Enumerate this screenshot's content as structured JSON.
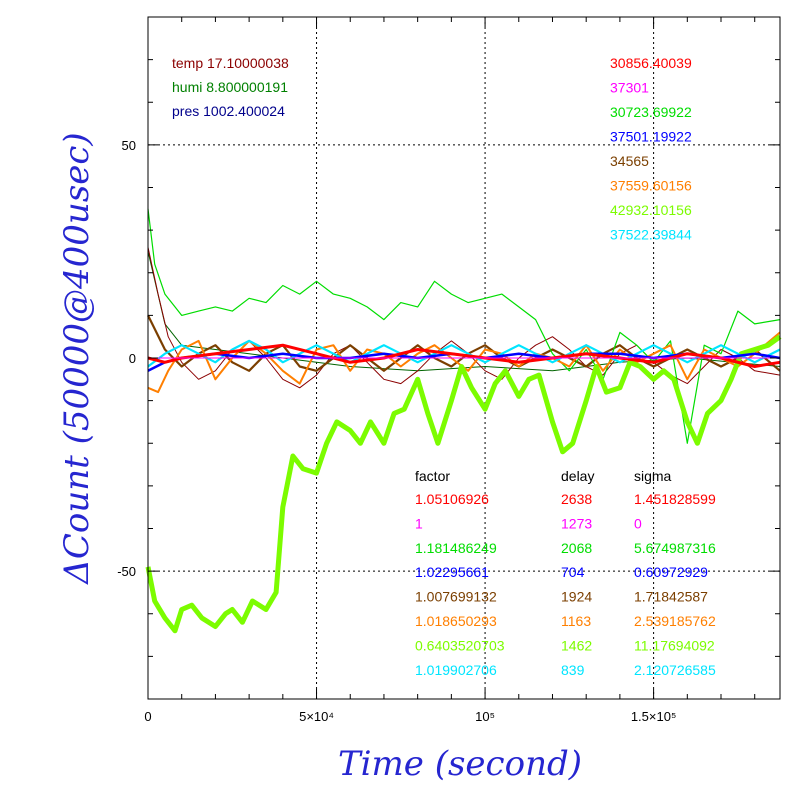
{
  "chart_data": {
    "type": "line",
    "title": "",
    "xlabel": "Time (second)",
    "ylabel": "ΔCount (50000@400usec)",
    "xlim": [
      0,
      187500
    ],
    "ylim": [
      -80,
      80
    ],
    "grid": true,
    "x_ticks": [
      {
        "value": 0,
        "label": "0"
      },
      {
        "value": 50000,
        "label": "5×10⁴"
      },
      {
        "value": 100000,
        "label": "10⁵"
      },
      {
        "value": 150000,
        "label": "1.5×10⁵"
      }
    ],
    "y_ticks": [
      {
        "value": -50,
        "label": "-50"
      },
      {
        "value": 0,
        "label": "0"
      },
      {
        "value": 50,
        "label": "50"
      }
    ],
    "env_labels": [
      {
        "text": "temp 17.10000038",
        "color": "#8b0000"
      },
      {
        "text": "humi 8.800000191",
        "color": "#008000"
      },
      {
        "text": "pres 1002.400024",
        "color": "#00008b"
      }
    ],
    "table_header": {
      "factor": "factor",
      "delay": "delay",
      "sigma": "sigma"
    },
    "series": [
      {
        "name": "30856.40039",
        "color": "#ff0000",
        "factor": "1.05106926",
        "delay": "2638",
        "sigma": "1.451828599",
        "x": [
          0,
          5000,
          10000,
          20000,
          30000,
          40000,
          50000,
          60000,
          70000,
          80000,
          90000,
          100000,
          110000,
          120000,
          130000,
          140000,
          150000,
          160000,
          170000,
          180000,
          187500
        ],
        "y": [
          0,
          -1,
          0,
          1,
          2,
          3,
          1,
          -1,
          0,
          2,
          1,
          0,
          -1,
          0,
          1,
          0,
          -1,
          1,
          0,
          -2,
          -1
        ]
      },
      {
        "name": "37301",
        "color": "#ff00ff",
        "factor": "1",
        "delay": "1273",
        "sigma": "0",
        "x": [
          0,
          187500
        ],
        "y": [
          0,
          0
        ]
      },
      {
        "name": "30723.69922",
        "color": "#00dd00",
        "factor": "1.181486249",
        "delay": "2068",
        "sigma": "5.674987316",
        "x": [
          0,
          2000,
          5000,
          8000,
          10000,
          15000,
          20000,
          25000,
          30000,
          35000,
          40000,
          45000,
          50000,
          55000,
          60000,
          65000,
          70000,
          75000,
          80000,
          85000,
          90000,
          95000,
          100000,
          105000,
          110000,
          115000,
          120000,
          125000,
          130000,
          135000,
          140000,
          145000,
          150000,
          155000,
          160000,
          165000,
          170000,
          175000,
          180000,
          187500
        ],
        "y": [
          35,
          22,
          15,
          12,
          10,
          11,
          12,
          11,
          14,
          13,
          17,
          15,
          18,
          15,
          14,
          12,
          9,
          13,
          12,
          18,
          15,
          13,
          14,
          15,
          12,
          9,
          1,
          -3,
          2,
          -5,
          6,
          3,
          -1,
          4,
          -20,
          3,
          1,
          11,
          8,
          9
        ]
      },
      {
        "name": "37501.19922",
        "color": "#0000ff",
        "factor": "1.02295661",
        "delay": "704",
        "sigma": "0.60972929",
        "x": [
          0,
          5000,
          10000,
          20000,
          30000,
          40000,
          50000,
          60000,
          70000,
          80000,
          90000,
          100000,
          110000,
          120000,
          130000,
          140000,
          150000,
          160000,
          170000,
          180000,
          187500
        ],
        "y": [
          -3,
          -1,
          0,
          1,
          0,
          1,
          0,
          0,
          1,
          0,
          1,
          0,
          1,
          0,
          1,
          1,
          0,
          1,
          0,
          1,
          0
        ]
      },
      {
        "name": "34565",
        "color": "#7b3f00",
        "factor": "1.007699132",
        "delay": "1924",
        "sigma": "1.71842587",
        "x": [
          0,
          5000,
          10000,
          15000,
          20000,
          25000,
          30000,
          35000,
          40000,
          45000,
          50000,
          55000,
          60000,
          65000,
          70000,
          75000,
          80000,
          85000,
          90000,
          95000,
          100000,
          105000,
          110000,
          115000,
          120000,
          125000,
          130000,
          135000,
          140000,
          145000,
          150000,
          155000,
          160000,
          165000,
          170000,
          175000,
          180000,
          187500
        ],
        "y": [
          10,
          2,
          -2,
          1,
          3,
          -1,
          -3,
          1,
          3,
          -2,
          -3,
          0,
          3,
          0,
          -3,
          0,
          3,
          0,
          -2,
          1,
          3,
          0,
          -2,
          0,
          2,
          0,
          -2,
          1,
          3,
          0,
          -2,
          0,
          2,
          0,
          -2,
          0,
          2,
          -3
        ]
      },
      {
        "name": "37559.60156",
        "color": "#ff7f00",
        "factor": "1.018650293",
        "delay": "1163",
        "sigma": "2.539185762",
        "x": [
          0,
          3000,
          6000,
          10000,
          15000,
          20000,
          25000,
          30000,
          35000,
          40000,
          45000,
          50000,
          55000,
          60000,
          65000,
          70000,
          75000,
          80000,
          85000,
          90000,
          95000,
          100000,
          105000,
          110000,
          115000,
          120000,
          125000,
          130000,
          135000,
          140000,
          145000,
          150000,
          155000,
          160000,
          165000,
          170000,
          175000,
          180000,
          187500
        ],
        "y": [
          -7,
          -8,
          -3,
          2,
          4,
          -5,
          0,
          4,
          1,
          -3,
          -6,
          2,
          3,
          -3,
          2,
          1,
          -2,
          1,
          3,
          0,
          -3,
          2,
          1,
          -2,
          1,
          0,
          -2,
          3,
          -3,
          2,
          -1,
          1,
          3,
          -5,
          2,
          0,
          -2,
          1,
          6
        ]
      },
      {
        "name": "42932.10156",
        "color": "#7cfc00",
        "factor": "0.6403520703",
        "delay": "1462",
        "sigma": "11.17694092",
        "x": [
          0,
          2000,
          5000,
          8000,
          10000,
          13000,
          16000,
          20000,
          23000,
          25000,
          28000,
          31000,
          35000,
          38000,
          40000,
          43000,
          46000,
          50000,
          53000,
          56000,
          60000,
          63000,
          66000,
          70000,
          73000,
          76000,
          80000,
          83000,
          86000,
          90000,
          93000,
          96000,
          100000,
          103000,
          106000,
          110000,
          113000,
          116000,
          120000,
          123000,
          126000,
          130000,
          133000,
          136000,
          140000,
          143000,
          146000,
          150000,
          153000,
          156000,
          160000,
          163000,
          166000,
          170000,
          173000,
          176000,
          180000,
          184000,
          187500
        ],
        "y": [
          -49,
          -57,
          -61,
          -64,
          -59,
          -58,
          -61,
          -63,
          -60,
          -59,
          -62,
          -57,
          -59,
          -55,
          -35,
          -23,
          -26,
          -27,
          -20,
          -15,
          -17,
          -20,
          -15,
          -20,
          -13,
          -12,
          -5,
          -13,
          -20,
          -10,
          -2,
          -7,
          -12,
          -6,
          -3,
          -9,
          -5,
          -4,
          -15,
          -22,
          -20,
          -10,
          -2,
          -8,
          -7,
          -1,
          -2,
          -5,
          -3,
          -5,
          -15,
          -20,
          -13,
          -10,
          -5,
          1,
          2,
          3,
          5
        ]
      },
      {
        "name": "37522.39844",
        "color": "#00e5ff",
        "factor": "1.019902706",
        "delay": "839",
        "sigma": "2.120726585",
        "x": [
          0,
          5000,
          10000,
          15000,
          20000,
          25000,
          30000,
          35000,
          40000,
          45000,
          50000,
          55000,
          60000,
          65000,
          70000,
          75000,
          80000,
          85000,
          90000,
          95000,
          100000,
          105000,
          110000,
          115000,
          120000,
          125000,
          130000,
          135000,
          140000,
          145000,
          150000,
          155000,
          160000,
          165000,
          170000,
          175000,
          180000,
          187500
        ],
        "y": [
          -2,
          1,
          3,
          1,
          -1,
          2,
          4,
          2,
          -1,
          1,
          3,
          1,
          -1,
          1,
          3,
          1,
          -1,
          1,
          3,
          1,
          -1,
          1,
          3,
          1,
          -1,
          1,
          3,
          1,
          -1,
          1,
          3,
          1,
          -1,
          1,
          3,
          1,
          -1,
          2
        ]
      },
      {
        "name": "",
        "color": "#006400",
        "x": [
          0,
          5000,
          10000,
          20000,
          30000,
          40000,
          60000,
          80000,
          100000,
          120000,
          140000,
          160000,
          187500
        ],
        "y": [
          25,
          8,
          3,
          2,
          1,
          0,
          -2,
          -3,
          -2,
          -3,
          -1,
          0,
          -2
        ]
      },
      {
        "name": "",
        "color": "#8b0000",
        "x": [
          0,
          3000,
          6000,
          10000,
          15000,
          20000,
          25000,
          30000,
          35000,
          40000,
          45000,
          50000,
          55000,
          60000,
          65000,
          70000,
          75000,
          80000,
          85000,
          90000,
          95000,
          100000,
          105000,
          110000,
          115000,
          120000,
          125000,
          130000,
          135000,
          140000,
          145000,
          150000,
          155000,
          160000,
          165000,
          170000,
          175000,
          180000,
          187500
        ],
        "y": [
          26,
          15,
          5,
          -1,
          -5,
          -3,
          2,
          4,
          0,
          -5,
          -7,
          -4,
          1,
          3,
          -1,
          -5,
          -6,
          -3,
          1,
          4,
          1,
          -3,
          -5,
          0,
          3,
          5,
          2,
          -2,
          -4,
          1,
          3,
          -1,
          -4,
          -6,
          -2,
          2,
          0,
          -3,
          -4
        ]
      }
    ]
  }
}
